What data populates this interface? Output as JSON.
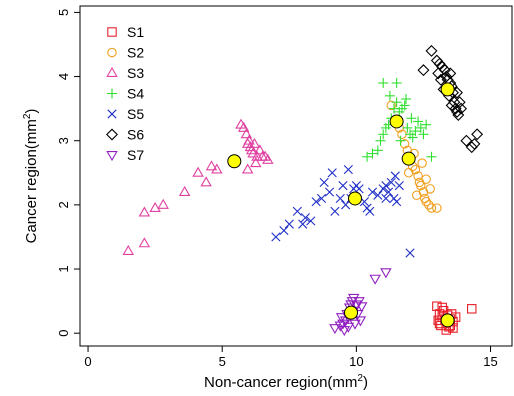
{
  "chart_data": {
    "type": "scatter",
    "xlabel": "Non-cancer region(mm",
    "xlabel_sup": "2",
    "xlabel_end": ")",
    "ylabel": "Cancer region(mm",
    "ylabel_sup": "2",
    "ylabel_end": ")",
    "xlim": [
      -0.3,
      15.8
    ],
    "ylim": [
      -0.2,
      5.1
    ],
    "xticks": [
      0,
      5,
      10,
      15
    ],
    "yticks": [
      0,
      1,
      2,
      3,
      4,
      5
    ],
    "legend_position": "top-left",
    "centroid_color": "#ffff00",
    "series": [
      {
        "name": "S1",
        "marker": "square",
        "color": "#e8202a",
        "points": [
          [
            14.3,
            0.38
          ],
          [
            13.0,
            0.42
          ],
          [
            13.1,
            0.3
          ],
          [
            13.2,
            0.25
          ],
          [
            13.3,
            0.2
          ],
          [
            13.35,
            0.15
          ],
          [
            13.4,
            0.28
          ],
          [
            13.5,
            0.22
          ],
          [
            13.6,
            0.18
          ],
          [
            13.15,
            0.12
          ],
          [
            13.45,
            0.1
          ],
          [
            13.25,
            0.35
          ],
          [
            13.55,
            0.3
          ],
          [
            13.05,
            0.2
          ],
          [
            13.7,
            0.25
          ],
          [
            13.35,
            0.05
          ],
          [
            13.6,
            0.08
          ],
          [
            13.2,
            0.4
          ],
          [
            13.1,
            0.15
          ],
          [
            13.5,
            0.12
          ]
        ],
        "centroid": [
          13.4,
          0.2
        ]
      },
      {
        "name": "S2",
        "marker": "circle",
        "color": "#f0a020",
        "points": [
          [
            11.3,
            3.55
          ],
          [
            11.5,
            3.3
          ],
          [
            11.7,
            3.1
          ],
          [
            11.8,
            2.95
          ],
          [
            11.9,
            2.85
          ],
          [
            12.0,
            2.7
          ],
          [
            12.1,
            2.6
          ],
          [
            12.2,
            2.55
          ],
          [
            12.3,
            2.45
          ],
          [
            12.35,
            2.35
          ],
          [
            12.4,
            2.3
          ],
          [
            12.5,
            2.2
          ],
          [
            12.55,
            2.1
          ],
          [
            12.6,
            2.05
          ],
          [
            12.7,
            2.0
          ],
          [
            12.8,
            1.95
          ],
          [
            13.0,
            1.95
          ],
          [
            11.6,
            3.2
          ],
          [
            12.15,
            2.8
          ],
          [
            12.45,
            2.65
          ],
          [
            12.6,
            2.4
          ],
          [
            12.75,
            2.25
          ],
          [
            12.25,
            2.15
          ],
          [
            11.95,
            2.5
          ]
        ],
        "centroid": [
          11.95,
          2.72
        ]
      },
      {
        "name": "S3",
        "marker": "triangle-up",
        "color": "#e040a0",
        "points": [
          [
            1.5,
            1.28
          ],
          [
            2.1,
            1.4
          ],
          [
            2.1,
            1.88
          ],
          [
            2.5,
            1.95
          ],
          [
            2.8,
            2.0
          ],
          [
            3.6,
            2.2
          ],
          [
            4.1,
            2.5
          ],
          [
            4.4,
            2.35
          ],
          [
            4.6,
            2.6
          ],
          [
            4.8,
            2.55
          ],
          [
            5.7,
            3.25
          ],
          [
            5.8,
            3.2
          ],
          [
            5.9,
            3.1
          ],
          [
            5.95,
            2.95
          ],
          [
            6.0,
            3.0
          ],
          [
            6.05,
            2.9
          ],
          [
            6.1,
            2.85
          ],
          [
            6.15,
            2.8
          ],
          [
            6.2,
            2.95
          ],
          [
            6.3,
            2.75
          ],
          [
            6.4,
            2.85
          ],
          [
            6.5,
            2.75
          ],
          [
            6.6,
            2.75
          ],
          [
            6.7,
            2.7
          ],
          [
            5.95,
            2.55
          ],
          [
            6.25,
            2.65
          ]
        ],
        "centroid": [
          5.45,
          2.68
        ]
      },
      {
        "name": "S4",
        "marker": "plus",
        "color": "#30e030",
        "points": [
          [
            10.4,
            2.75
          ],
          [
            10.6,
            2.8
          ],
          [
            10.8,
            2.85
          ],
          [
            10.9,
            3.0
          ],
          [
            11.0,
            3.1
          ],
          [
            11.1,
            3.2
          ],
          [
            11.2,
            3.25
          ],
          [
            11.3,
            3.35
          ],
          [
            11.4,
            3.5
          ],
          [
            11.5,
            3.6
          ],
          [
            11.6,
            3.45
          ],
          [
            11.7,
            3.5
          ],
          [
            11.8,
            3.55
          ],
          [
            11.9,
            3.2
          ],
          [
            12.0,
            3.1
          ],
          [
            12.1,
            3.05
          ],
          [
            12.2,
            3.15
          ],
          [
            12.3,
            3.3
          ],
          [
            12.4,
            3.2
          ],
          [
            12.5,
            3.1
          ],
          [
            12.6,
            3.25
          ],
          [
            12.8,
            2.75
          ],
          [
            11.0,
            3.9
          ],
          [
            11.5,
            3.9
          ],
          [
            11.85,
            3.65
          ],
          [
            11.25,
            3.7
          ],
          [
            12.05,
            3.35
          ],
          [
            11.65,
            3.0
          ]
        ],
        "centroid": [
          11.5,
          3.3
        ]
      },
      {
        "name": "S5",
        "marker": "x",
        "color": "#2030c8",
        "points": [
          [
            7.0,
            1.5
          ],
          [
            7.3,
            1.6
          ],
          [
            7.5,
            1.7
          ],
          [
            7.8,
            1.9
          ],
          [
            8.1,
            1.8
          ],
          [
            8.3,
            1.75
          ],
          [
            8.5,
            2.05
          ],
          [
            8.7,
            2.1
          ],
          [
            8.8,
            2.35
          ],
          [
            9.0,
            2.2
          ],
          [
            9.2,
            1.9
          ],
          [
            9.4,
            2.1
          ],
          [
            9.5,
            2.3
          ],
          [
            9.6,
            2.0
          ],
          [
            9.8,
            2.1
          ],
          [
            9.9,
            2.25
          ],
          [
            10.0,
            2.3
          ],
          [
            10.1,
            2.25
          ],
          [
            10.3,
            2.05
          ],
          [
            10.4,
            1.95
          ],
          [
            10.6,
            2.2
          ],
          [
            10.8,
            2.15
          ],
          [
            11.0,
            2.25
          ],
          [
            11.1,
            2.3
          ],
          [
            11.2,
            2.2
          ],
          [
            11.3,
            2.35
          ],
          [
            11.4,
            2.1
          ],
          [
            11.5,
            2.05
          ],
          [
            11.6,
            2.3
          ],
          [
            9.7,
            2.55
          ],
          [
            9.1,
            2.5
          ],
          [
            11.45,
            2.45
          ],
          [
            11.1,
            2.1
          ],
          [
            12.0,
            1.25
          ],
          [
            10.5,
            1.9
          ],
          [
            8.0,
            1.7
          ]
        ],
        "centroid": [
          9.95,
          2.1
        ]
      },
      {
        "name": "S6",
        "marker": "diamond",
        "color": "#000000",
        "points": [
          [
            12.8,
            4.4
          ],
          [
            13.0,
            4.25
          ],
          [
            13.1,
            4.2
          ],
          [
            13.2,
            4.15
          ],
          [
            13.3,
            4.1
          ],
          [
            13.35,
            4.0
          ],
          [
            13.4,
            3.95
          ],
          [
            13.5,
            3.9
          ],
          [
            13.55,
            3.85
          ],
          [
            13.6,
            3.75
          ],
          [
            13.65,
            3.6
          ],
          [
            13.7,
            3.5
          ],
          [
            13.75,
            3.45
          ],
          [
            13.8,
            3.4
          ],
          [
            13.5,
            4.05
          ],
          [
            13.25,
            3.8
          ],
          [
            13.45,
            3.7
          ],
          [
            13.9,
            3.5
          ],
          [
            12.5,
            4.1
          ],
          [
            14.1,
            3.0
          ],
          [
            14.3,
            2.9
          ],
          [
            14.4,
            2.95
          ],
          [
            14.5,
            3.1
          ],
          [
            13.15,
            3.95
          ],
          [
            13.55,
            3.55
          ],
          [
            13.75,
            3.75
          ],
          [
            13.05,
            4.05
          ],
          [
            13.85,
            3.6
          ]
        ],
        "centroid": [
          13.4,
          3.8
        ]
      },
      {
        "name": "S7",
        "marker": "triangle-down",
        "color": "#9020c0",
        "points": [
          [
            9.2,
            0.08
          ],
          [
            9.4,
            0.12
          ],
          [
            9.5,
            0.15
          ],
          [
            9.6,
            0.2
          ],
          [
            9.65,
            0.3
          ],
          [
            9.7,
            0.25
          ],
          [
            9.75,
            0.4
          ],
          [
            9.8,
            0.45
          ],
          [
            9.85,
            0.5
          ],
          [
            9.9,
            0.55
          ],
          [
            10.0,
            0.45
          ],
          [
            10.1,
            0.5
          ],
          [
            10.2,
            0.42
          ],
          [
            9.55,
            0.05
          ],
          [
            9.9,
            0.35
          ],
          [
            10.05,
            0.3
          ],
          [
            9.45,
            0.25
          ],
          [
            10.7,
            0.85
          ],
          [
            11.1,
            0.95
          ],
          [
            9.7,
            0.1
          ],
          [
            10.15,
            0.2
          ],
          [
            9.95,
            0.15
          ]
        ],
        "centroid": [
          9.8,
          0.32
        ]
      }
    ]
  }
}
